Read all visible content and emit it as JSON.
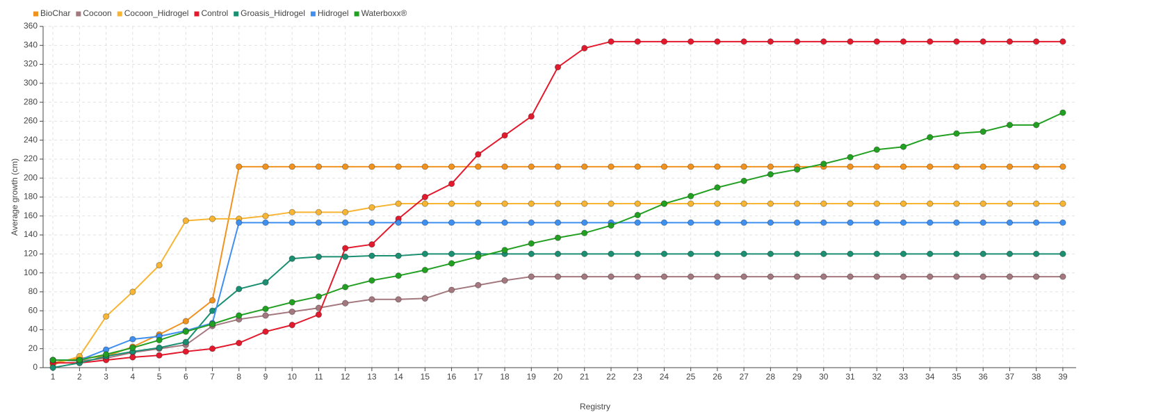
{
  "chart_data": {
    "type": "line",
    "xlabel": "Registry",
    "ylabel": "Average growth (cm)",
    "x": [
      1,
      2,
      3,
      4,
      5,
      6,
      7,
      8,
      9,
      10,
      11,
      12,
      13,
      14,
      15,
      16,
      17,
      18,
      19,
      20,
      21,
      22,
      23,
      24,
      25,
      26,
      27,
      28,
      29,
      30,
      31,
      32,
      33,
      34,
      35,
      36,
      37,
      38,
      39
    ],
    "xlim": [
      0.63,
      39.5
    ],
    "xticks": [
      1,
      2,
      3,
      4,
      5,
      6,
      7,
      8,
      9,
      10,
      11,
      12,
      13,
      14,
      15,
      16,
      17,
      18,
      19,
      20,
      21,
      22,
      23,
      24,
      25,
      26,
      27,
      28,
      29,
      30,
      31,
      32,
      33,
      34,
      35,
      36,
      37,
      38,
      39
    ],
    "ylim": [
      0,
      360
    ],
    "yticks": [
      0,
      20,
      40,
      60,
      80,
      100,
      120,
      140,
      160,
      180,
      200,
      220,
      240,
      260,
      280,
      300,
      320,
      340,
      360
    ],
    "grid": true,
    "legend": "top-left",
    "series": [
      {
        "name": "BioChar",
        "color": "#f0921f",
        "values": [
          5,
          10,
          12,
          22,
          35,
          49,
          71,
          212,
          212,
          212,
          212,
          212,
          212,
          212,
          212,
          212,
          212,
          212,
          212,
          212,
          212,
          212,
          212,
          212,
          212,
          212,
          212,
          212,
          212,
          212,
          212,
          212,
          212,
          212,
          212,
          212,
          212,
          212,
          212
        ]
      },
      {
        "name": "Cocoon",
        "color": "#a3787e",
        "values": [
          8,
          7,
          10,
          16,
          20,
          24,
          44,
          51,
          55,
          59,
          63,
          68,
          72,
          72,
          73,
          82,
          87,
          92,
          96,
          96,
          96,
          96,
          96,
          96,
          96,
          96,
          96,
          96,
          96,
          96,
          96,
          96,
          96,
          96,
          96,
          96,
          96,
          96,
          96
        ]
      },
      {
        "name": "Cocoon_Hidrogel",
        "color": "#f7b533",
        "values": [
          3,
          12,
          54,
          80,
          108,
          155,
          157,
          157,
          160,
          164,
          164,
          164,
          169,
          173,
          173,
          173,
          173,
          173,
          173,
          173,
          173,
          173,
          173,
          173,
          173,
          173,
          173,
          173,
          173,
          173,
          173,
          173,
          173,
          173,
          173,
          173,
          173,
          173,
          173
        ]
      },
      {
        "name": "Control",
        "color": "#e31a2d",
        "values": [
          5,
          5,
          8,
          11,
          13,
          17,
          20,
          26,
          38,
          45,
          56,
          126,
          130,
          157,
          180,
          194,
          225,
          245,
          265,
          317,
          337,
          344,
          344,
          344,
          344,
          344,
          344,
          344,
          344,
          344,
          344,
          344,
          344,
          344,
          344,
          344,
          344,
          344,
          344
        ]
      },
      {
        "name": "Groasis_Hidrogel",
        "color": "#1a8f72",
        "values": [
          0,
          5,
          12,
          17,
          21,
          27,
          60,
          83,
          90,
          115,
          117,
          117,
          118,
          118,
          120,
          120,
          120,
          120,
          120,
          120,
          120,
          120,
          120,
          120,
          120,
          120,
          120,
          120,
          120,
          120,
          120,
          120,
          120,
          120,
          120,
          120,
          120,
          120,
          120
        ]
      },
      {
        "name": "Hidrogel",
        "color": "#3f8fef",
        "values": [
          8,
          8,
          19,
          30,
          33,
          39,
          47,
          153,
          153,
          153,
          153,
          153,
          153,
          153,
          153,
          153,
          153,
          153,
          153,
          153,
          153,
          153,
          153,
          153,
          153,
          153,
          153,
          153,
          153,
          153,
          153,
          153,
          153,
          153,
          153,
          153,
          153,
          153,
          153
        ]
      },
      {
        "name": "Waterboxx®",
        "color": "#22a022",
        "values": [
          8,
          8,
          14,
          21,
          29,
          38,
          46,
          55,
          62,
          69,
          75,
          85,
          92,
          97,
          103,
          110,
          117,
          124,
          131,
          137,
          142,
          150,
          161,
          173,
          181,
          190,
          197,
          204,
          209,
          215,
          222,
          230,
          233,
          243,
          247,
          249,
          256,
          256,
          269
        ]
      }
    ]
  }
}
